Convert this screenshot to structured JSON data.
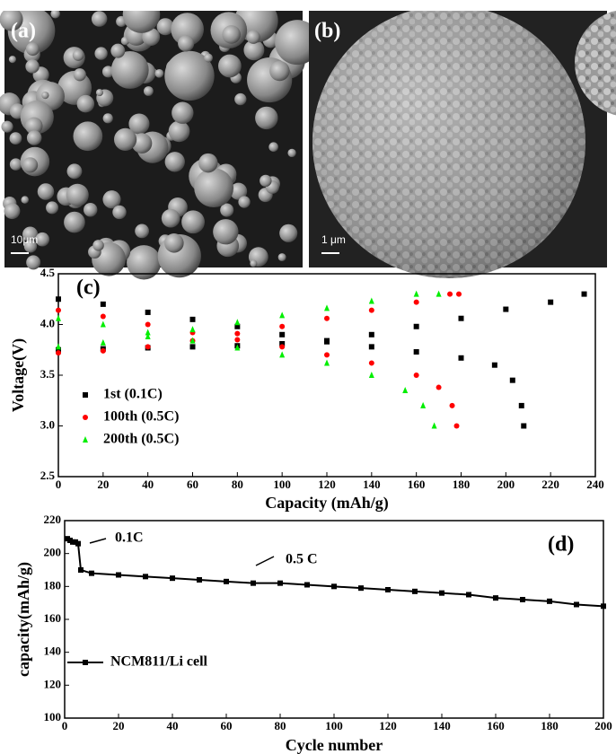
{
  "panels": [
    {
      "label": "(a)",
      "scale_bar": "10μm"
    },
    {
      "label": "(b)",
      "scale_bar": "1 μm"
    }
  ],
  "chart_data": [
    {
      "type": "scatter",
      "panel_label": "(c)",
      "xlabel": "Capacity (mAh/g)",
      "ylabel": "Voltage(V)",
      "xlim": [
        0,
        240
      ],
      "xticks": [
        0,
        20,
        40,
        60,
        80,
        100,
        120,
        140,
        160,
        180,
        200,
        220,
        240
      ],
      "ylim": [
        2.5,
        4.5
      ],
      "yticks": [
        2.5,
        {
          "value": 3,
          "label": "3.0"
        },
        3.5,
        {
          "value": 4,
          "label": "4.0"
        },
        4.5
      ],
      "legend": "left",
      "series": [
        {
          "name": "1st (0.1C)",
          "color": "#000000",
          "marker": "square",
          "x": [
            0,
            20,
            40,
            60,
            80,
            100,
            120,
            140,
            160,
            180,
            200,
            220,
            235,
            null,
            0,
            20,
            40,
            60,
            80,
            100,
            120,
            140,
            160,
            180,
            195,
            203,
            207,
            208
          ],
          "values": [
            3.75,
            3.76,
            3.77,
            3.78,
            3.79,
            3.81,
            3.84,
            3.9,
            3.98,
            4.06,
            4.15,
            4.22,
            4.3,
            null,
            4.25,
            4.2,
            4.12,
            4.05,
            3.98,
            3.9,
            3.83,
            3.78,
            3.73,
            3.67,
            3.6,
            3.45,
            3.2,
            3.0
          ]
        },
        {
          "name": "100th (0.5C)",
          "color": "#ff0000",
          "marker": "circle",
          "x": [
            0,
            20,
            40,
            60,
            80,
            100,
            120,
            140,
            160,
            175,
            179,
            null,
            0,
            20,
            40,
            60,
            80,
            100,
            120,
            140,
            160,
            170,
            176,
            178
          ],
          "values": [
            3.72,
            3.74,
            3.78,
            3.84,
            3.91,
            3.98,
            4.06,
            4.14,
            4.22,
            4.3,
            4.3,
            null,
            4.14,
            4.08,
            4.0,
            3.92,
            3.85,
            3.78,
            3.7,
            3.62,
            3.5,
            3.38,
            3.2,
            3.0
          ]
        },
        {
          "name": "200th (0.5C)",
          "color": "#00ee00",
          "marker": "triangle",
          "x": [
            0,
            20,
            40,
            60,
            80,
            100,
            120,
            140,
            160,
            170,
            null,
            0,
            20,
            40,
            60,
            80,
            100,
            120,
            140,
            155,
            163,
            168
          ],
          "values": [
            3.78,
            3.82,
            3.88,
            3.95,
            4.02,
            4.09,
            4.16,
            4.23,
            4.3,
            4.3,
            null,
            4.06,
            4.0,
            3.92,
            3.84,
            3.77,
            3.7,
            3.62,
            3.5,
            3.35,
            3.2,
            3.0
          ]
        }
      ]
    },
    {
      "type": "line",
      "panel_label": "(d)",
      "xlabel": "Cycle number",
      "ylabel": "capacity(mAh/g)",
      "xlim": [
        0,
        200
      ],
      "xticks": [
        0,
        20,
        40,
        60,
        80,
        100,
        120,
        140,
        160,
        180,
        200
      ],
      "ylim": [
        100,
        220
      ],
      "yticks": [
        100,
        120,
        140,
        160,
        180,
        200,
        220
      ],
      "legend": "lower left",
      "annotations": [
        "0.1C",
        "0.5 C"
      ],
      "series": [
        {
          "name": "NCM811/Li cell",
          "color": "#000000",
          "marker": "square",
          "x": [
            1,
            2,
            3,
            4,
            5,
            6,
            10,
            20,
            30,
            40,
            50,
            60,
            70,
            80,
            90,
            100,
            110,
            120,
            130,
            140,
            150,
            160,
            170,
            180,
            190,
            200
          ],
          "values": [
            209,
            208,
            207,
            207,
            206,
            190,
            188,
            187,
            186,
            185,
            184,
            183,
            182,
            182,
            181,
            180,
            179,
            178,
            177,
            176,
            175,
            173,
            172,
            171,
            169,
            168
          ]
        }
      ]
    }
  ]
}
